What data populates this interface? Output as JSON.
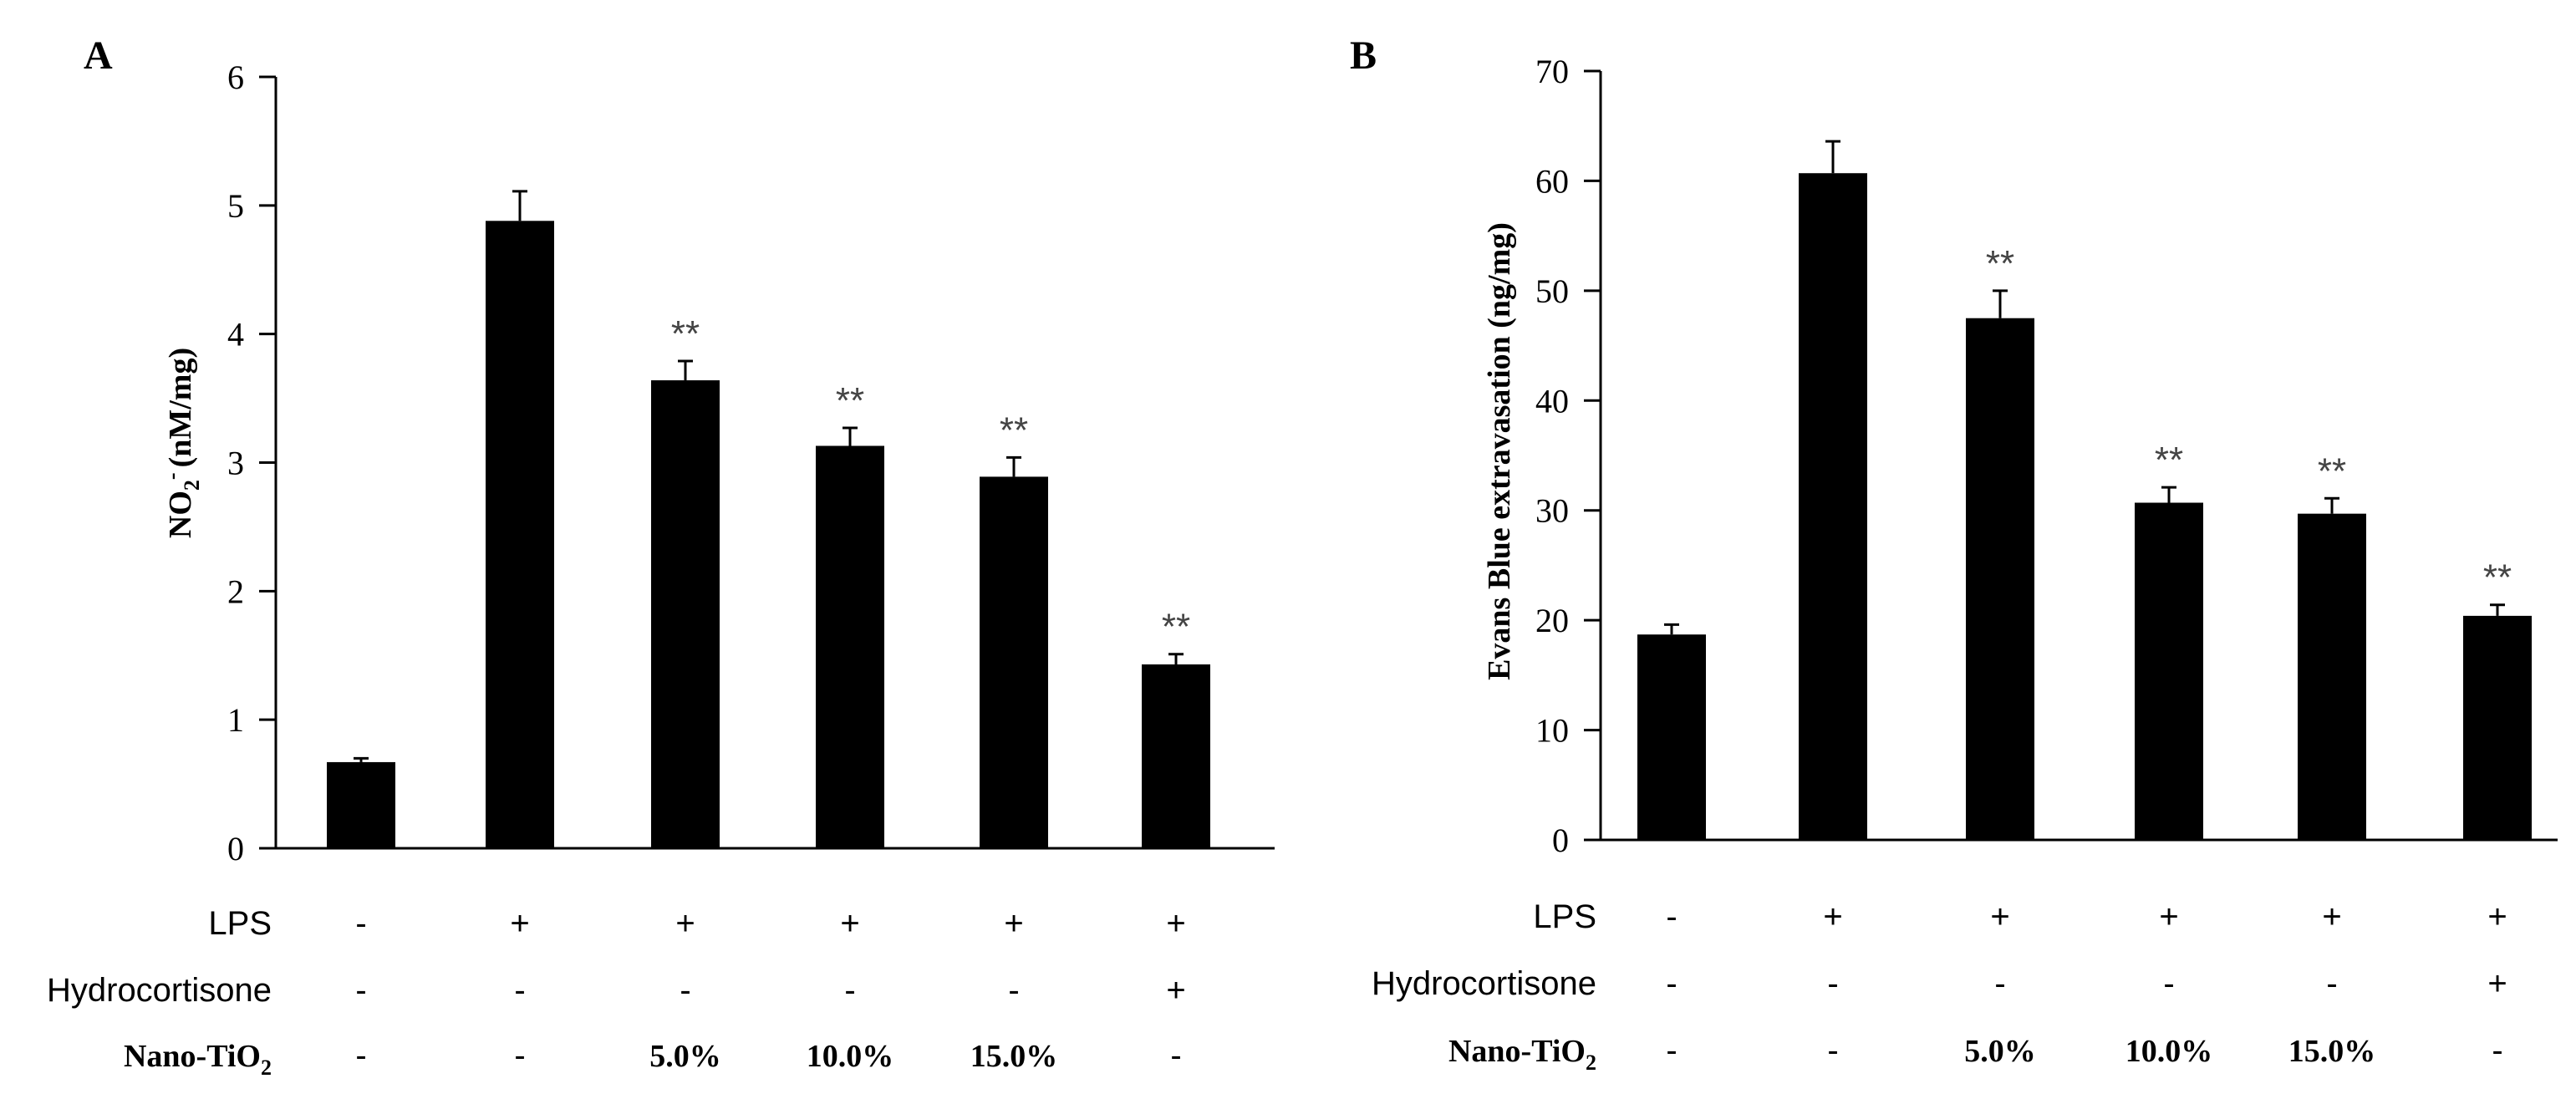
{
  "chart_data": [
    {
      "panel": "A",
      "type": "bar",
      "ylabel": "NO2- (nM/mg)",
      "ylabel_main": "NO",
      "ylabel_sub": "2",
      "ylabel_sup": "-",
      "ylabel_unit": "(nM/mg)",
      "ylim": [
        0,
        6
      ],
      "yticks": [
        0,
        1,
        2,
        3,
        4,
        5,
        6
      ],
      "values": [
        0.67,
        4.88,
        3.64,
        3.13,
        2.89,
        1.43
      ],
      "errors": [
        0.03,
        0.23,
        0.15,
        0.14,
        0.15,
        0.08
      ],
      "annotations": [
        "",
        "",
        "**",
        "**",
        "**",
        "**"
      ],
      "conditions": [
        {
          "label": "LPS",
          "values": [
            "-",
            "+",
            "+",
            "+",
            "+",
            "+"
          ]
        },
        {
          "label": "Hydrocortisone",
          "values": [
            "-",
            "-",
            "-",
            "-",
            "-",
            "+"
          ]
        },
        {
          "label": "Nano-TiO2",
          "label_main": "Nano-TiO",
          "label_sub": "2",
          "values": [
            "-",
            "-",
            "5.0%",
            "10.0%",
            "15.0%",
            "-"
          ]
        }
      ]
    },
    {
      "panel": "B",
      "type": "bar",
      "ylabel": "Evans Blue extravasation (ng/mg)",
      "ylim": [
        0,
        70
      ],
      "yticks": [
        0,
        10,
        20,
        30,
        40,
        50,
        60,
        70
      ],
      "values": [
        18.7,
        60.7,
        47.5,
        30.7,
        29.7,
        20.4
      ],
      "errors": [
        0.9,
        2.9,
        2.5,
        1.4,
        1.4,
        1.0
      ],
      "annotations": [
        "",
        "",
        "**",
        "**",
        "**",
        "**"
      ],
      "conditions": [
        {
          "label": "LPS",
          "values": [
            "-",
            "+",
            "+",
            "+",
            "+",
            "+"
          ]
        },
        {
          "label": "Hydrocortisone",
          "values": [
            "-",
            "-",
            "-",
            "-",
            "-",
            "+"
          ]
        },
        {
          "label": "Nano-TiO2",
          "label_main": "Nano-TiO",
          "label_sub": "2",
          "values": [
            "-",
            "-",
            "5.0%",
            "10.0%",
            "15.0%",
            "-"
          ]
        }
      ]
    }
  ],
  "colors": {
    "bar": "#000000",
    "axis": "#000000",
    "annotation": "#444444",
    "background": "#ffffff"
  }
}
